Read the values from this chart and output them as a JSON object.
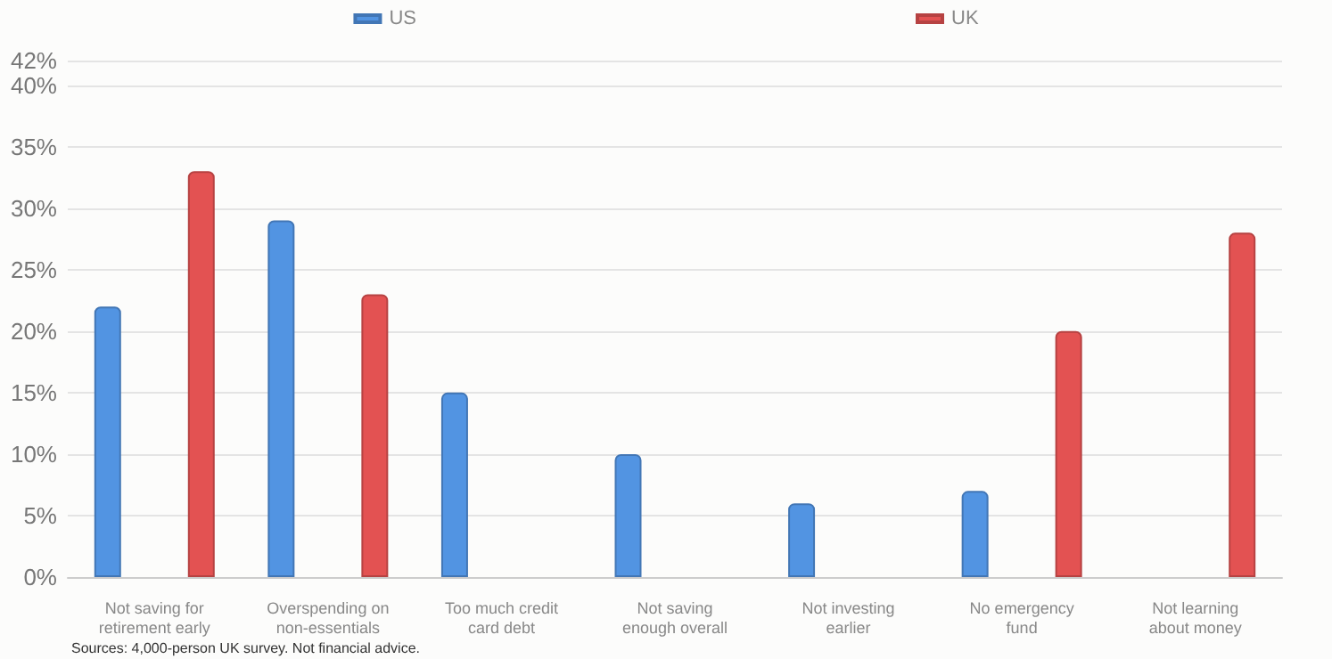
{
  "chart_data": {
    "type": "bar",
    "categories": [
      "Not saving for\nretirement early",
      "Overspending on\nnon-essentials",
      "Too much credit\ncard debt",
      "Not saving\nenough overall",
      "Not investing\nearlier",
      "No emergency\nfund",
      "Not learning\nabout money"
    ],
    "series": [
      {
        "name": "US",
        "color": "#5294e2",
        "values": [
          22,
          29,
          15,
          10,
          6,
          7,
          null
        ]
      },
      {
        "name": "UK",
        "color": "#e35252",
        "values": [
          33,
          23,
          null,
          null,
          null,
          20,
          28
        ]
      }
    ],
    "ylim": [
      0,
      42
    ],
    "yticks": [
      {
        "value": 0,
        "label": "0%"
      },
      {
        "value": 5,
        "label": "5%"
      },
      {
        "value": 10,
        "label": "10%"
      },
      {
        "value": 15,
        "label": "15%"
      },
      {
        "value": 20,
        "label": "20%"
      },
      {
        "value": 25,
        "label": "25%"
      },
      {
        "value": 30,
        "label": "30%"
      },
      {
        "value": 35,
        "label": "35%"
      },
      {
        "value": 40,
        "label": "40%"
      },
      {
        "value": 42,
        "label": "42%"
      }
    ],
    "grid": "y",
    "legend": "top",
    "annotations": [
      "Sources: 4,000-person UK survey. Not financial advice."
    ]
  }
}
